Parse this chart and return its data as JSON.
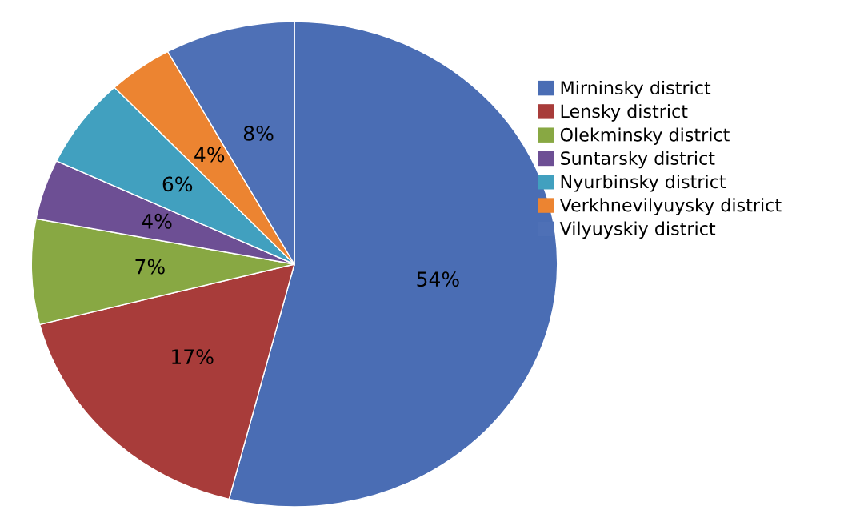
{
  "chart_data": {
    "type": "pie",
    "categories": [
      "Mirninsky district",
      "Lensky district",
      "Olekminsky district",
      "Suntarsky district",
      "Nyurbinsky district",
      "Verkhnevilyuysky district",
      "Vilyuyskiy district"
    ],
    "values": [
      54,
      17,
      7,
      4,
      6,
      4,
      8
    ],
    "colors": [
      "#4a6db4",
      "#a83c3a",
      "#88a843",
      "#6d4f94",
      "#41a0bf",
      "#ec8431",
      "#4e70b6"
    ],
    "value_labels": [
      "54%",
      "17%",
      "7%",
      "4%",
      "6%",
      "4%",
      "8%"
    ],
    "legend": "right"
  }
}
